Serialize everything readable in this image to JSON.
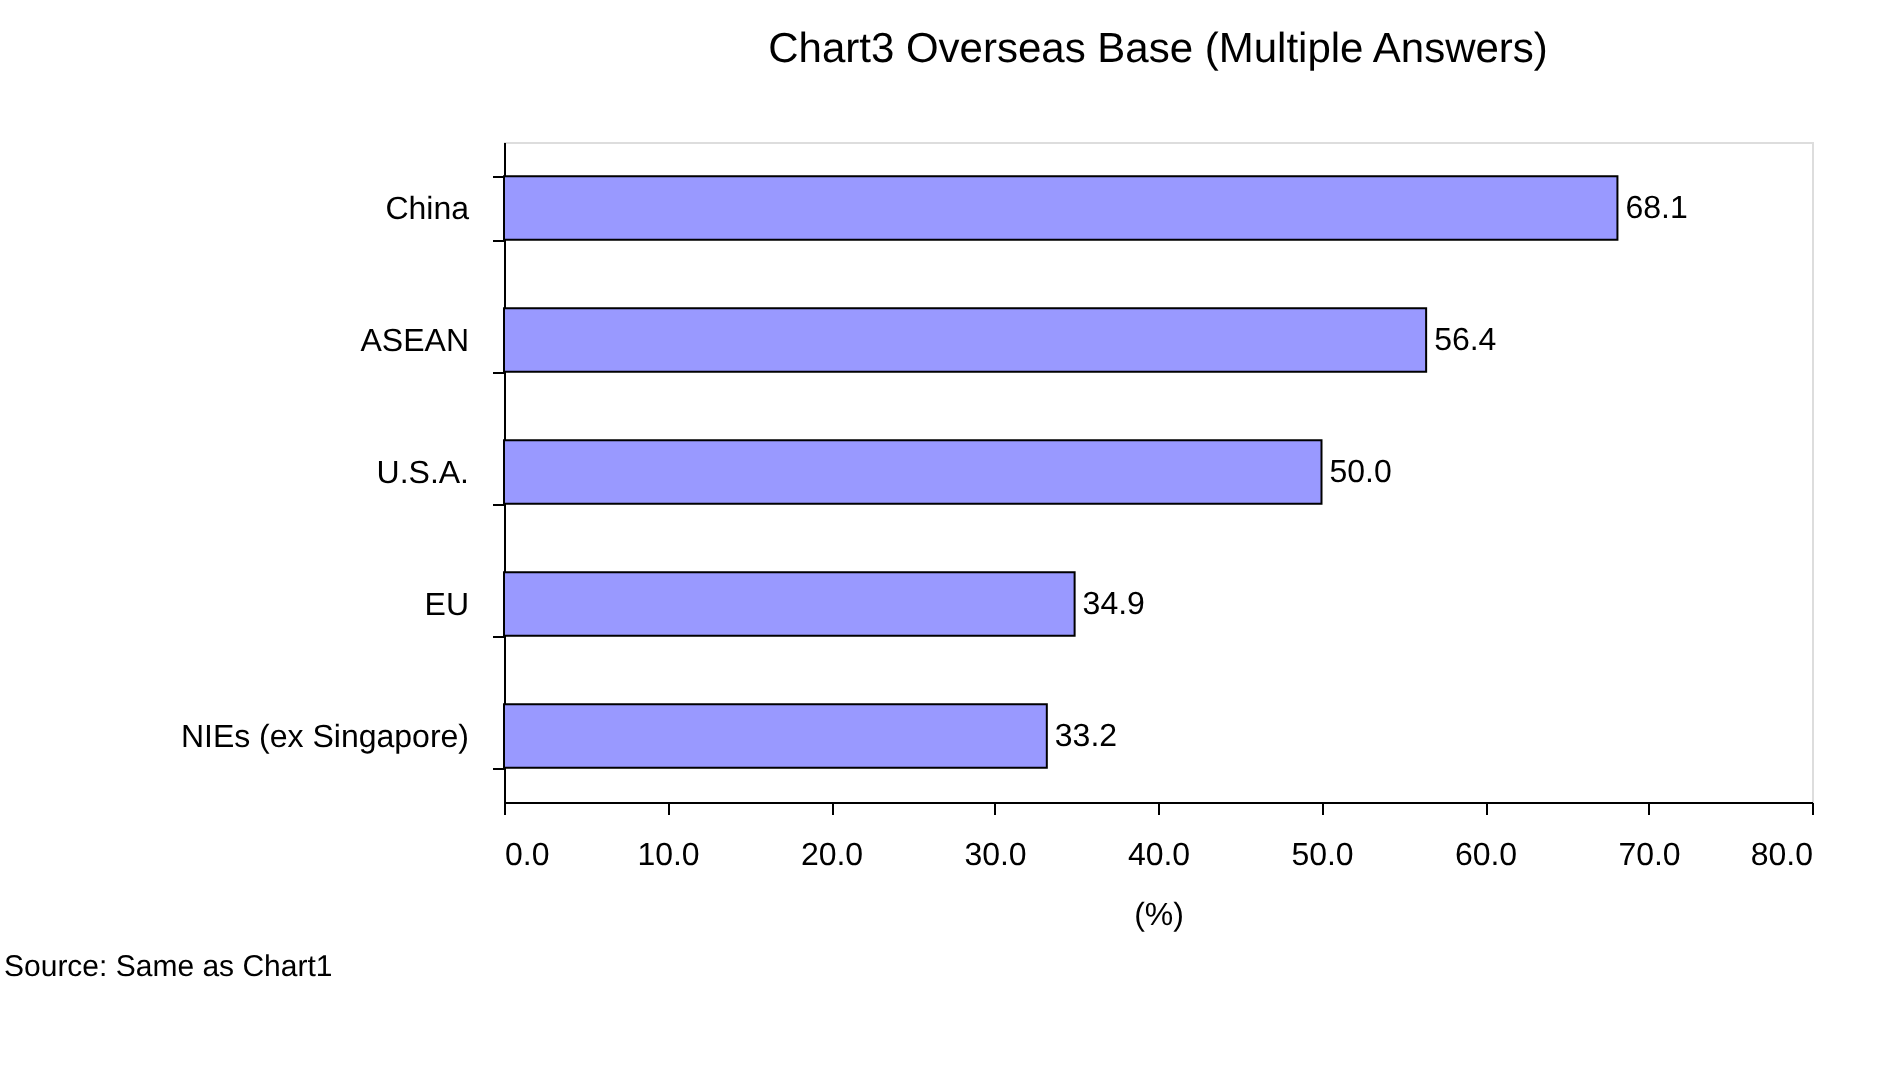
{
  "chart_data": {
    "type": "bar",
    "orientation": "horizontal",
    "title": "Chart3 Overseas Base (Multiple Answers)",
    "xlabel": "(%)",
    "categories": [
      "China",
      "ASEAN",
      "U.S.A.",
      "EU",
      "NIEs (ex Singapore)"
    ],
    "values": [
      68.1,
      56.4,
      50.0,
      34.9,
      33.2
    ],
    "value_labels": [
      "68.1",
      "56.4",
      "50.0",
      "34.9",
      "33.2"
    ],
    "color": "#9999ff",
    "xlim": [
      0,
      80
    ],
    "xticks": [
      {
        "value": 0,
        "label": "0.0"
      },
      {
        "value": 10,
        "label": "10.0"
      },
      {
        "value": 20,
        "label": "20.0"
      },
      {
        "value": 30,
        "label": "30.0"
      },
      {
        "value": 40,
        "label": "40.0"
      },
      {
        "value": 50,
        "label": "50.0"
      },
      {
        "value": 60,
        "label": "60.0"
      },
      {
        "value": 70,
        "label": "70.0"
      },
      {
        "value": 80,
        "label": "80.0"
      }
    ],
    "grid": false,
    "annotations": [
      "Source: Same as Chart1"
    ]
  }
}
